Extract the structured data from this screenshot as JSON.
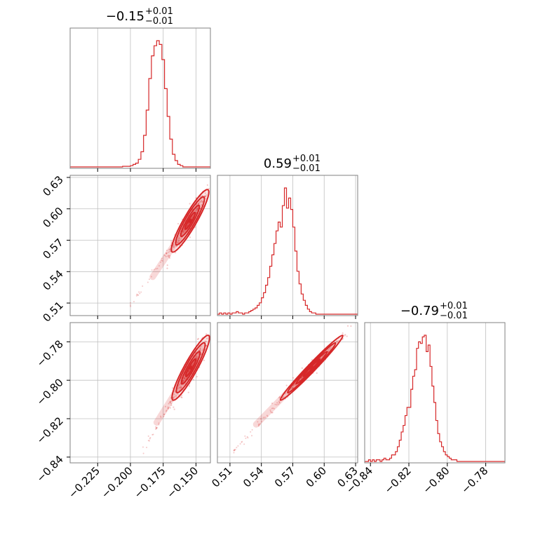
{
  "chart_data": {
    "type": "corner",
    "color": "#d62728",
    "parameters": [
      {
        "median": "−0.15",
        "plus": "+0.01",
        "minus": "−0.01"
      },
      {
        "median": "0.59",
        "plus": "+0.01",
        "minus": "−0.01"
      },
      {
        "median": "−0.79",
        "plus": "+0.01",
        "minus": "−0.01"
      }
    ],
    "ranges": [
      [
        -0.246,
        -0.139
      ],
      [
        0.498,
        0.632
      ],
      [
        -0.843,
        -0.77
      ]
    ],
    "ticks": [
      {
        "values": [
          -0.225,
          -0.2,
          -0.175,
          -0.15
        ],
        "labels": [
          "−0.225",
          "−0.200",
          "−0.175",
          "−0.150"
        ]
      },
      {
        "values": [
          0.51,
          0.54,
          0.57,
          0.6,
          0.63
        ],
        "labels": [
          "0.51",
          "0.54",
          "0.57",
          "0.60",
          "0.63"
        ]
      },
      {
        "values": [
          -0.84,
          -0.82,
          -0.8,
          -0.78
        ],
        "labels": [
          "−0.84",
          "−0.82",
          "−0.80",
          "−0.78"
        ]
      }
    ],
    "histograms": [
      {
        "start": -0.206,
        "width": 0.002,
        "counts": [
          0.5,
          0.5,
          0.5,
          1,
          2,
          3,
          6,
          12,
          25,
          45,
          70,
          88,
          96,
          100,
          97,
          85,
          62,
          40,
          22,
          10,
          5,
          2,
          1
        ]
      },
      {
        "start": 0.5,
        "width": 0.002,
        "counts": [
          1,
          0,
          1,
          0,
          1,
          0,
          1,
          1,
          2,
          1,
          1,
          0,
          1,
          1,
          2,
          3,
          4,
          5,
          7,
          9,
          13,
          17,
          23,
          29,
          38,
          47,
          56,
          66,
          73,
          69,
          86,
          100,
          84,
          92,
          83,
          69,
          50,
          34,
          24,
          16,
          11,
          7,
          4,
          2,
          1,
          1
        ]
      },
      {
        "start": -0.841,
        "width": 0.001,
        "counts": [
          1,
          0,
          1,
          0,
          1,
          1,
          0,
          1,
          2,
          1,
          1,
          2,
          4,
          4,
          6,
          9,
          13,
          18,
          22,
          28,
          33,
          33,
          44,
          52,
          56,
          69,
          73,
          72,
          76,
          77,
          67,
          71,
          58,
          46,
          36,
          25,
          17,
          12,
          9,
          6,
          4,
          3,
          2,
          1,
          1,
          1
        ]
      }
    ],
    "pairs": [
      {
        "x": 0,
        "y": 1,
        "center": [
          -0.1545,
          0.5885
        ],
        "dx": 0.0055,
        "dy": 0.0115,
        "rho": 0.92,
        "tail": [
          [
            -0.183,
            0.535
          ],
          [
            -0.197,
            0.514
          ],
          [
            -0.203,
            0.503
          ]
        ]
      },
      {
        "x": 0,
        "y": 2,
        "center": [
          -0.154,
          -0.7935
        ],
        "dx": 0.0055,
        "dy": 0.0065,
        "rho": 0.92,
        "tail": [
          [
            -0.18,
            -0.822
          ],
          [
            -0.188,
            -0.833
          ],
          [
            -0.191,
            -0.838
          ]
        ]
      },
      {
        "x": 1,
        "y": 2,
        "center": [
          0.588,
          -0.7935
        ],
        "dx": 0.0115,
        "dy": 0.0065,
        "rho": 0.985,
        "tail": [
          [
            0.535,
            -0.823
          ],
          [
            0.518,
            -0.834
          ],
          [
            0.512,
            -0.838
          ]
        ]
      }
    ]
  }
}
